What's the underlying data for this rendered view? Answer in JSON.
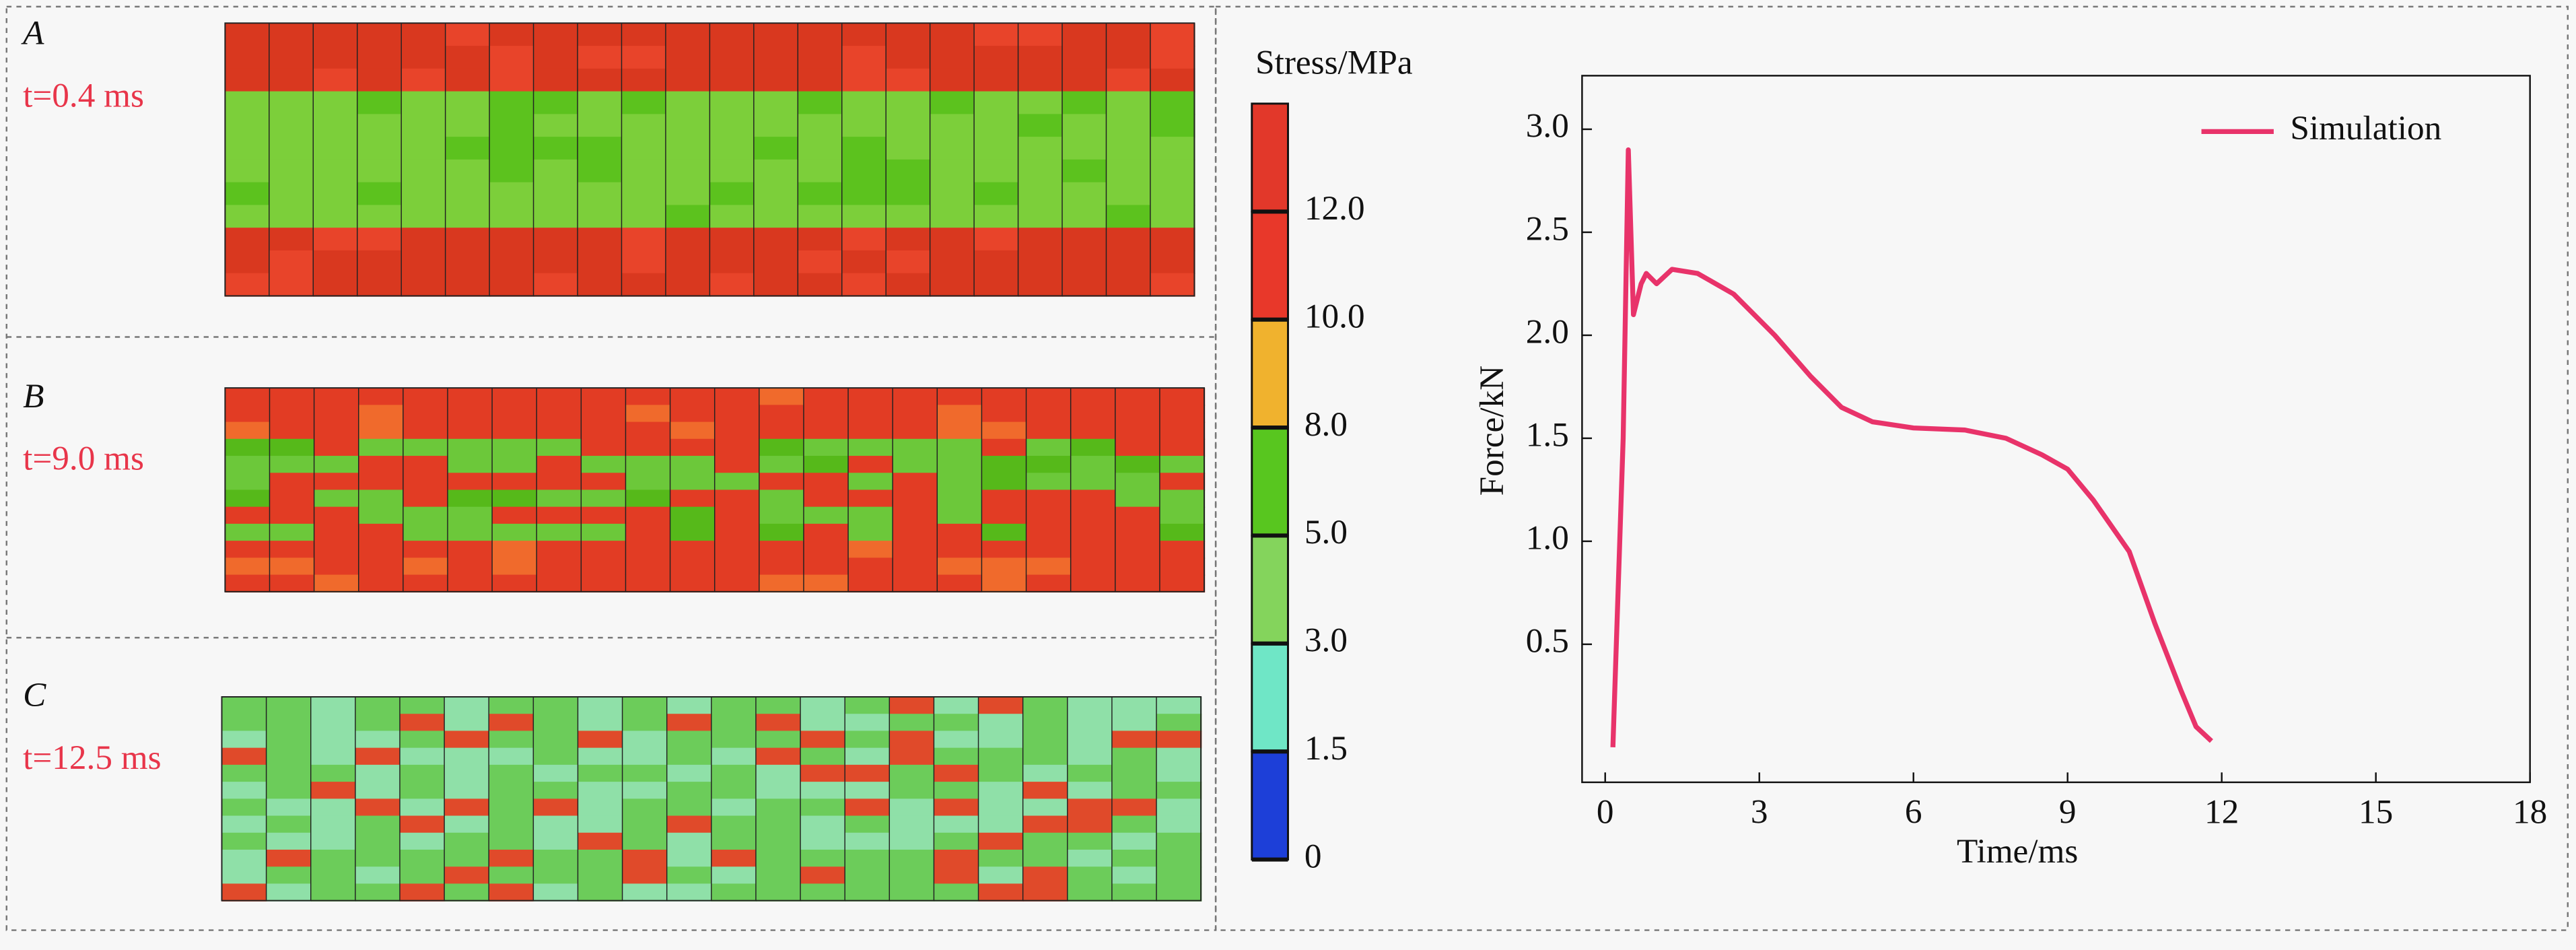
{
  "panels": [
    {
      "label": "A",
      "time": "t=0.4 ms"
    },
    {
      "label": "B",
      "time": "t=9.0 ms"
    },
    {
      "label": "C",
      "time": "t=12.5 ms"
    }
  ],
  "colorbar": {
    "title": "Stress/MPa",
    "ticks": [
      0,
      1.5,
      {
        "value": 3,
        "label": "3.0"
      },
      {
        "value": 5,
        "label": "5.0"
      },
      {
        "value": 8,
        "label": "8.0"
      },
      {
        "value": 10,
        "label": "10.0"
      },
      {
        "value": 12,
        "label": "12.0"
      }
    ],
    "colors": [
      "#1d3fd8",
      "#6fe6c6",
      "#84d45c",
      "#58c61f",
      "#f0b22e",
      "#e8382a",
      "#e2382a"
    ]
  },
  "chart_data": {
    "type": "line",
    "x_label": "Time/ms",
    "y_label": "Force/kN",
    "x": [
      0.15,
      0.35,
      0.45,
      0.55,
      0.7,
      0.8,
      1.0,
      1.3,
      1.8,
      2.5,
      3.3,
      4.0,
      4.6,
      5.2,
      6.0,
      7.0,
      7.8,
      8.5,
      9.0,
      9.5,
      10.2,
      10.7,
      11.2,
      11.5,
      11.8
    ],
    "series": [
      {
        "name": "Simulation",
        "color": "#e8336a",
        "values": [
          0,
          1.5,
          2.9,
          2.1,
          2.25,
          2.3,
          2.25,
          2.32,
          2.3,
          2.2,
          2.0,
          1.8,
          1.65,
          1.58,
          1.55,
          1.54,
          1.5,
          1.42,
          1.35,
          1.2,
          0.95,
          0.6,
          0.28,
          0.1,
          0.03
        ]
      }
    ],
    "xlim": [
      -0.45,
      18
    ],
    "xticks": [
      0,
      3,
      6,
      9,
      12,
      15,
      18
    ],
    "ylim": [
      -0.17,
      3.26
    ],
    "yticks": [
      0.5,
      {
        "value": 1,
        "label": "1.0"
      },
      1.5,
      {
        "value": 2,
        "label": "2.0"
      },
      2.5,
      {
        "value": 3,
        "label": "3.0"
      }
    ],
    "legend": "upper right"
  }
}
